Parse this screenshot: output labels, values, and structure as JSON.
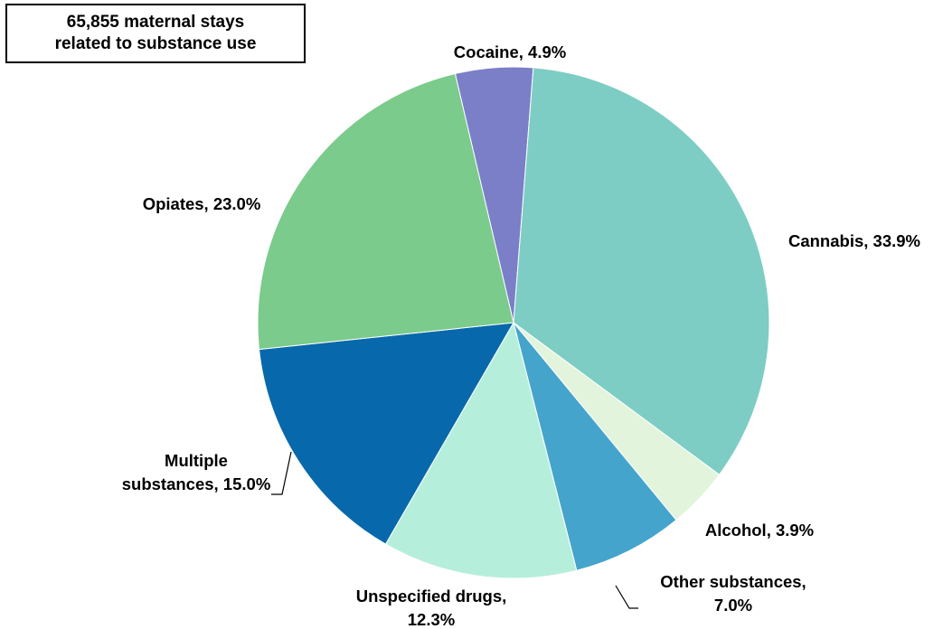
{
  "annotation": {
    "line1": "65,855 maternal stays",
    "line2": "related to substance use"
  },
  "chart_data": {
    "type": "pie",
    "start_angle_deg": -13.2,
    "direction": "clockwise",
    "slices": [
      {
        "name": "Cocaine",
        "value": 4.9,
        "label_lines": [
          "Cocaine, 4.9%"
        ],
        "color": "#7b7fc8"
      },
      {
        "name": "Cannabis",
        "value": 33.9,
        "label_lines": [
          "Cannabis, 33.9%"
        ],
        "color": "#7dcdc4"
      },
      {
        "name": "Alcohol",
        "value": 3.9,
        "label_lines": [
          "Alcohol,  3.9%"
        ],
        "color": "#e2f4dc"
      },
      {
        "name": "Other substances",
        "value": 7.0,
        "label_lines": [
          "Other substances,",
          "7.0%"
        ],
        "color": "#44a4cc"
      },
      {
        "name": "Unspecified drugs",
        "value": 12.3,
        "label_lines": [
          "Unspecified drugs,",
          "12.3%"
        ],
        "color": "#b6eedc"
      },
      {
        "name": "Multiple substances",
        "value": 15.0,
        "label_lines": [
          "Multiple",
          "substances, 15.0%"
        ],
        "color": "#0868ac"
      },
      {
        "name": "Opiates",
        "value": 23.0,
        "label_lines": [
          "Opiates, 23.0%"
        ],
        "color": "#7bcb8c"
      }
    ]
  }
}
